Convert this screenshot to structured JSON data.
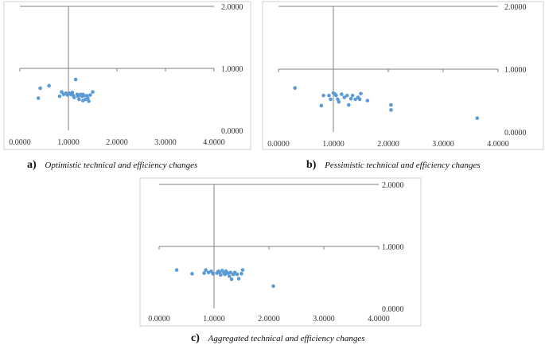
{
  "chart_data": [
    {
      "type": "scatter",
      "panel_label": "a)",
      "caption": "Optimistic technical and efficiency changes",
      "xlim": [
        0,
        4
      ],
      "ylim": [
        0,
        2
      ],
      "x_ticks": [
        "0.0000",
        "1.0000",
        "2.0000",
        "3.0000",
        "4.0000"
      ],
      "y_ticks": [
        "0.0000",
        "1.0000",
        "2.0000"
      ],
      "crossing": {
        "x": 1,
        "y": 1
      },
      "grid": false,
      "points": [
        {
          "x": 0.38,
          "y": 0.52
        },
        {
          "x": 0.42,
          "y": 0.68
        },
        {
          "x": 0.6,
          "y": 0.72
        },
        {
          "x": 0.82,
          "y": 0.55
        },
        {
          "x": 0.86,
          "y": 0.62
        },
        {
          "x": 0.9,
          "y": 0.58
        },
        {
          "x": 0.95,
          "y": 0.6
        },
        {
          "x": 0.98,
          "y": 0.57
        },
        {
          "x": 1.02,
          "y": 0.6
        },
        {
          "x": 1.05,
          "y": 0.58
        },
        {
          "x": 1.08,
          "y": 0.61
        },
        {
          "x": 1.1,
          "y": 0.56
        },
        {
          "x": 1.12,
          "y": 0.53
        },
        {
          "x": 1.15,
          "y": 0.82
        },
        {
          "x": 1.18,
          "y": 0.58
        },
        {
          "x": 1.2,
          "y": 0.55
        },
        {
          "x": 1.22,
          "y": 0.5
        },
        {
          "x": 1.25,
          "y": 0.58
        },
        {
          "x": 1.28,
          "y": 0.55
        },
        {
          "x": 1.3,
          "y": 0.58
        },
        {
          "x": 1.32,
          "y": 0.56
        },
        {
          "x": 1.35,
          "y": 0.5
        },
        {
          "x": 1.38,
          "y": 0.56
        },
        {
          "x": 1.4,
          "y": 0.52
        },
        {
          "x": 1.42,
          "y": 0.47
        },
        {
          "x": 1.45,
          "y": 0.57
        },
        {
          "x": 1.5,
          "y": 0.62
        },
        {
          "x": 1.3,
          "y": 0.48
        }
      ]
    },
    {
      "type": "scatter",
      "panel_label": "b)",
      "caption": "Pessimistic technical and efficiency changes",
      "xlim": [
        0,
        4
      ],
      "ylim": [
        0,
        2
      ],
      "x_ticks": [
        "0.0000",
        "1.0000",
        "2.0000",
        "3.0000",
        "4.0000"
      ],
      "y_ticks": [
        "0.0000",
        "1.0000",
        "2.0000"
      ],
      "crossing": {
        "x": 1,
        "y": 1
      },
      "grid": false,
      "points": [
        {
          "x": 0.3,
          "y": 0.7
        },
        {
          "x": 0.78,
          "y": 0.42
        },
        {
          "x": 0.82,
          "y": 0.58
        },
        {
          "x": 0.92,
          "y": 0.58
        },
        {
          "x": 0.95,
          "y": 0.52
        },
        {
          "x": 1.0,
          "y": 0.62
        },
        {
          "x": 1.03,
          "y": 0.6
        },
        {
          "x": 1.05,
          "y": 0.58
        },
        {
          "x": 1.08,
          "y": 0.52
        },
        {
          "x": 1.1,
          "y": 0.48
        },
        {
          "x": 1.15,
          "y": 0.6
        },
        {
          "x": 1.2,
          "y": 0.55
        },
        {
          "x": 1.25,
          "y": 0.58
        },
        {
          "x": 1.28,
          "y": 0.43
        },
        {
          "x": 1.32,
          "y": 0.53
        },
        {
          "x": 1.35,
          "y": 0.58
        },
        {
          "x": 1.4,
          "y": 0.52
        },
        {
          "x": 1.45,
          "y": 0.55
        },
        {
          "x": 1.5,
          "y": 0.61
        },
        {
          "x": 1.48,
          "y": 0.52
        },
        {
          "x": 1.62,
          "y": 0.5
        },
        {
          "x": 2.05,
          "y": 0.43
        },
        {
          "x": 2.05,
          "y": 0.35
        },
        {
          "x": 3.62,
          "y": 0.22
        }
      ]
    },
    {
      "type": "scatter",
      "panel_label": "c)",
      "caption": "Aggregated technical and efficiency changes",
      "xlim": [
        0,
        4
      ],
      "ylim": [
        0,
        2
      ],
      "x_ticks": [
        "0.0000",
        "1.0000",
        "2.0000",
        "3.0000",
        "4.0000"
      ],
      "y_ticks": [
        "0.0000",
        "1.0000",
        "2.0000"
      ],
      "crossing": {
        "x": 1,
        "y": 1
      },
      "grid": false,
      "points": [
        {
          "x": 0.32,
          "y": 0.62
        },
        {
          "x": 0.6,
          "y": 0.56
        },
        {
          "x": 0.82,
          "y": 0.57
        },
        {
          "x": 0.85,
          "y": 0.62
        },
        {
          "x": 0.9,
          "y": 0.58
        },
        {
          "x": 0.95,
          "y": 0.6
        },
        {
          "x": 0.98,
          "y": 0.56
        },
        {
          "x": 1.05,
          "y": 0.57
        },
        {
          "x": 1.08,
          "y": 0.6
        },
        {
          "x": 1.1,
          "y": 0.58
        },
        {
          "x": 1.12,
          "y": 0.54
        },
        {
          "x": 1.15,
          "y": 0.61
        },
        {
          "x": 1.18,
          "y": 0.57
        },
        {
          "x": 1.2,
          "y": 0.55
        },
        {
          "x": 1.22,
          "y": 0.6
        },
        {
          "x": 1.25,
          "y": 0.57
        },
        {
          "x": 1.28,
          "y": 0.52
        },
        {
          "x": 1.3,
          "y": 0.58
        },
        {
          "x": 1.32,
          "y": 0.47
        },
        {
          "x": 1.35,
          "y": 0.55
        },
        {
          "x": 1.38,
          "y": 0.58
        },
        {
          "x": 1.42,
          "y": 0.55
        },
        {
          "x": 1.45,
          "y": 0.48
        },
        {
          "x": 1.5,
          "y": 0.56
        },
        {
          "x": 1.52,
          "y": 0.62
        },
        {
          "x": 2.08,
          "y": 0.36
        }
      ]
    }
  ]
}
